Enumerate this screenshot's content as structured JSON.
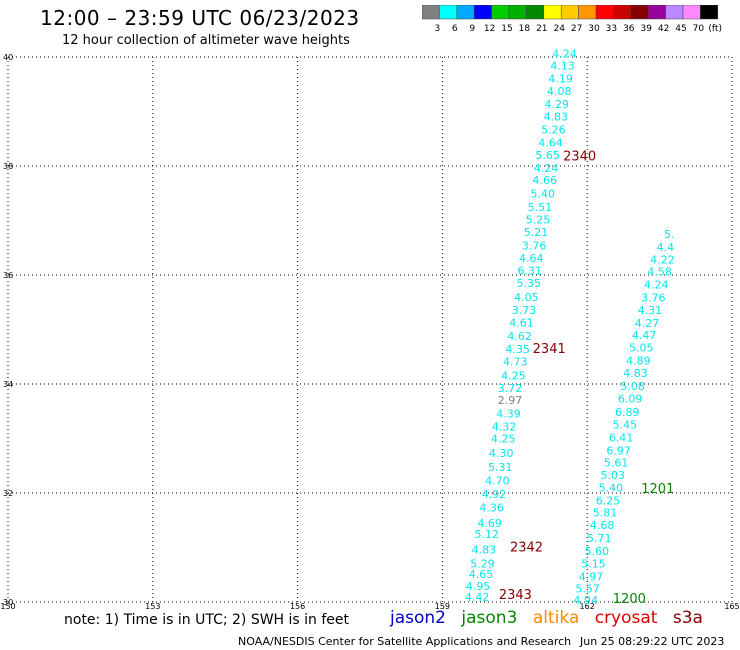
{
  "header": {
    "title": "12:00 – 23:59 UTC 06/23/2023",
    "subtitle": "12 hour collection of altimeter wave heights"
  },
  "colorbar": {
    "colors": [
      "#808080",
      "#00ffff",
      "#00aaff",
      "#0000ff",
      "#00cc00",
      "#00b000",
      "#008800",
      "#ffff00",
      "#ffcc00",
      "#ff9900",
      "#ff0000",
      "#cc0000",
      "#880000",
      "#990099",
      "#bb88ff",
      "#ff88ff",
      "#000000"
    ],
    "labels": [
      "3",
      "6",
      "9",
      "12",
      "15",
      "18",
      "21",
      "24",
      "27",
      "30",
      "33",
      "36",
      "39",
      "42",
      "45",
      "70",
      "(ft)"
    ]
  },
  "chart_data": {
    "type": "scatter",
    "title": "12:00 – 23:59 UTC 06/23/2023",
    "subtitle": "12 hour collection of altimeter wave heights",
    "xlim": [
      150,
      165
    ],
    "ylim": [
      30,
      40
    ],
    "x_ticks": [
      "150",
      "153",
      "156",
      "159",
      "162",
      "165"
    ],
    "y_ticks": [
      "30",
      "32",
      "34",
      "36",
      "38",
      "40"
    ],
    "grid": true,
    "series": [
      {
        "name": "jason3",
        "color": "#00e5ee",
        "points": [
          {
            "x": 159.72,
            "y": 30.09,
            "label": "4.42"
          },
          {
            "x": 159.74,
            "y": 30.29,
            "label": "4.95"
          },
          {
            "x": 159.8,
            "y": 30.51,
            "label": "4.65"
          },
          {
            "x": 159.83,
            "y": 30.71,
            "label": "5.29"
          },
          {
            "x": 159.86,
            "y": 30.96,
            "label": "4.83"
          },
          {
            "x": 159.92,
            "y": 31.25,
            "label": "5.12"
          },
          {
            "x": 159.98,
            "y": 31.45,
            "label": "4.69"
          },
          {
            "x": 160.02,
            "y": 31.73,
            "label": "4.36"
          },
          {
            "x": 160.07,
            "y": 31.98,
            "label": "4.92"
          },
          {
            "x": 160.14,
            "y": 32.23,
            "label": "4.70"
          },
          {
            "x": 160.2,
            "y": 32.48,
            "label": "5.31"
          },
          {
            "x": 160.22,
            "y": 32.73,
            "label": "4.30"
          },
          {
            "x": 160.26,
            "y": 33.0,
            "label": "4.25"
          },
          {
            "x": 160.28,
            "y": 33.22,
            "label": "4.32"
          },
          {
            "x": 160.37,
            "y": 33.46,
            "label": "4.39"
          },
          {
            "x": 160.4,
            "y": 33.71,
            "label": "2.97"
          },
          {
            "x": 160.4,
            "y": 33.93,
            "label": "3.72"
          },
          {
            "x": 160.47,
            "y": 34.16,
            "label": "4.25"
          },
          {
            "x": 160.51,
            "y": 34.41,
            "label": "4.73"
          },
          {
            "x": 160.56,
            "y": 34.64,
            "label": "4.35"
          },
          {
            "x": 160.6,
            "y": 34.88,
            "label": "4.62"
          },
          {
            "x": 160.64,
            "y": 35.13,
            "label": "4.61"
          },
          {
            "x": 160.69,
            "y": 35.36,
            "label": "3.73"
          },
          {
            "x": 160.74,
            "y": 35.6,
            "label": "4.05"
          },
          {
            "x": 160.79,
            "y": 35.85,
            "label": "5.35"
          },
          {
            "x": 160.81,
            "y": 36.08,
            "label": "6.31"
          },
          {
            "x": 160.84,
            "y": 36.31,
            "label": "4.64"
          },
          {
            "x": 160.9,
            "y": 36.54,
            "label": "3.76"
          },
          {
            "x": 160.94,
            "y": 36.79,
            "label": "5.21"
          },
          {
            "x": 160.98,
            "y": 37.02,
            "label": "5.25"
          },
          {
            "x": 161.02,
            "y": 37.25,
            "label": "5.51"
          },
          {
            "x": 161.08,
            "y": 37.5,
            "label": "5.40"
          },
          {
            "x": 161.12,
            "y": 37.74,
            "label": "4.66"
          },
          {
            "x": 161.15,
            "y": 37.96,
            "label": "4.24"
          },
          {
            "x": 161.18,
            "y": 38.2,
            "label": "5.65"
          },
          {
            "x": 161.24,
            "y": 38.43,
            "label": "4.64"
          },
          {
            "x": 161.3,
            "y": 38.67,
            "label": "5.26"
          },
          {
            "x": 161.35,
            "y": 38.91,
            "label": "4.83"
          },
          {
            "x": 161.37,
            "y": 39.14,
            "label": "4.29"
          },
          {
            "x": 161.42,
            "y": 39.38,
            "label": "4.08"
          },
          {
            "x": 161.45,
            "y": 39.61,
            "label": "4.19"
          },
          {
            "x": 161.49,
            "y": 39.84,
            "label": "4.13"
          },
          {
            "x": 161.53,
            "y": 40.06,
            "label": "4.24"
          }
        ]
      },
      {
        "name": "jason3",
        "color": "#00e5ee",
        "points": [
          {
            "x": 161.97,
            "y": 30.04,
            "label": "4.94"
          },
          {
            "x": 162.01,
            "y": 30.25,
            "label": "5.57"
          },
          {
            "x": 162.08,
            "y": 30.47,
            "label": "4.97"
          },
          {
            "x": 162.13,
            "y": 30.71,
            "label": "5.15"
          },
          {
            "x": 162.2,
            "y": 30.94,
            "label": "5.60"
          },
          {
            "x": 162.25,
            "y": 31.17,
            "label": "5.71"
          },
          {
            "x": 162.31,
            "y": 31.41,
            "label": "4.68"
          },
          {
            "x": 162.37,
            "y": 31.64,
            "label": "5.81"
          },
          {
            "x": 162.43,
            "y": 31.86,
            "label": "6.25"
          },
          {
            "x": 162.49,
            "y": 32.1,
            "label": "5.40"
          },
          {
            "x": 162.53,
            "y": 32.33,
            "label": "5.03"
          },
          {
            "x": 162.6,
            "y": 32.56,
            "label": "5.61"
          },
          {
            "x": 162.65,
            "y": 32.78,
            "label": "6.97"
          },
          {
            "x": 162.7,
            "y": 33.02,
            "label": "6.41"
          },
          {
            "x": 162.78,
            "y": 33.26,
            "label": "5.45"
          },
          {
            "x": 162.83,
            "y": 33.49,
            "label": "6.89"
          },
          {
            "x": 162.89,
            "y": 33.73,
            "label": "6.09"
          },
          {
            "x": 162.94,
            "y": 33.96,
            "label": "5.08"
          },
          {
            "x": 163.0,
            "y": 34.2,
            "label": "4.83"
          },
          {
            "x": 163.06,
            "y": 34.43,
            "label": "4.89"
          },
          {
            "x": 163.12,
            "y": 34.67,
            "label": "5.05"
          },
          {
            "x": 163.18,
            "y": 34.9,
            "label": "4.47"
          },
          {
            "x": 163.24,
            "y": 35.12,
            "label": "4.27"
          },
          {
            "x": 163.3,
            "y": 35.36,
            "label": "4.31"
          },
          {
            "x": 163.37,
            "y": 35.59,
            "label": "3.76"
          },
          {
            "x": 163.43,
            "y": 35.83,
            "label": "4.24"
          },
          {
            "x": 163.5,
            "y": 36.06,
            "label": "4.58"
          },
          {
            "x": 163.56,
            "y": 36.28,
            "label": "4.22"
          },
          {
            "x": 163.62,
            "y": 36.51,
            "label": "4.4"
          },
          {
            "x": 163.7,
            "y": 36.75,
            "label": "5."
          }
        ]
      }
    ],
    "time_labels": [
      {
        "x": 161.5,
        "y": 38.19,
        "label": "2340",
        "color": "#880000"
      },
      {
        "x": 160.87,
        "y": 34.66,
        "label": "2341",
        "color": "#880000"
      },
      {
        "x": 160.4,
        "y": 31.02,
        "label": "2342",
        "color": "#880000"
      },
      {
        "x": 160.17,
        "y": 30.15,
        "label": "2343",
        "color": "#880000"
      },
      {
        "x": 163.12,
        "y": 32.09,
        "label": "1201",
        "color": "#008800"
      },
      {
        "x": 162.53,
        "y": 30.07,
        "label": "1200",
        "color": "#008800"
      }
    ]
  },
  "footer": {
    "note": "note:  1) Time is in UTC;  2) SWH is in feet",
    "satellites": [
      {
        "name": "jason2",
        "color": "#0000cc"
      },
      {
        "name": "jason3",
        "color": "#008800"
      },
      {
        "name": "altika",
        "color": "#ff8800"
      },
      {
        "name": "cryosat",
        "color": "#dd0000"
      },
      {
        "name": "s3a",
        "color": "#880000"
      }
    ],
    "credit": "NOAA/NESDIS Center for Satellite Applications and Research",
    "timestamp": "Jun 25 08:29:22 UTC 2023"
  }
}
